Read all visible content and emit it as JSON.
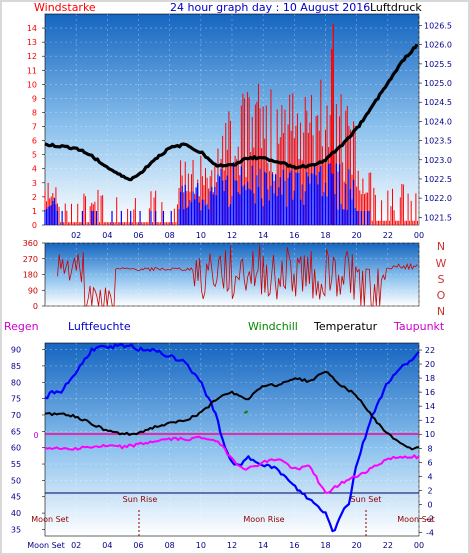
{
  "top": {
    "title_left": "Windstarke",
    "title_center": "24 hour graph day : 10 August 2016",
    "title_right": "Luftdruck"
  },
  "middle": {
    "compass": [
      "N",
      "W",
      "S",
      "O",
      "N"
    ]
  },
  "bottom": {
    "headers": [
      {
        "text": "Regen",
        "color": "#cc00cc"
      },
      {
        "text": "Luftfeuchte",
        "color": "#0000cc"
      },
      {
        "text": "Windchill",
        "color": "#008800"
      },
      {
        "text": "Temperatur",
        "color": "#000000"
      },
      {
        "text": "Taupunkt",
        "color": "#cc00cc"
      }
    ],
    "events": {
      "moon_set_left": "Moon Set",
      "sun_rise": "Sun Rise",
      "moon_rise": "Moon Rise",
      "sun_set": "Sun Set",
      "moon_set_right": "Moon Set",
      "moon_set_axis": "Moon Set"
    },
    "zero_label": "0"
  },
  "colors": {
    "wind_speed": "#ff0000",
    "gust": "#0000ff",
    "pressure": "#000000",
    "wind_dir": "#cc0000",
    "humidity": "#0000ff",
    "temperature": "#000000",
    "dewpoint": "#ff00ff",
    "windchill": "#008800",
    "events": "#8b0000",
    "plot_top": "#1565c0",
    "plot_bottom": "#ffffff"
  },
  "chart_data": [
    {
      "type": "line",
      "x_ticks": [
        "02",
        "04",
        "06",
        "08",
        "10",
        "12",
        "14",
        "16",
        "18",
        "20",
        "22",
        "00"
      ],
      "wind_axis": {
        "label": "Windstarke",
        "ticks": [
          0,
          1,
          2,
          3,
          4,
          5,
          6,
          7,
          8,
          9,
          10,
          11,
          12,
          13,
          14
        ],
        "ylim": [
          0,
          15
        ]
      },
      "pressure_axis": {
        "label": "Luftdruck",
        "ticks": [
          1021.5,
          1022,
          1022.5,
          1023,
          1023.5,
          1024,
          1024.5,
          1025,
          1025.5,
          1026,
          1026.5
        ],
        "ylim": [
          1021.3,
          1026.8
        ]
      },
      "pressure_series": {
        "name": "Luftdruck",
        "x": [
          0,
          1,
          2,
          3,
          4,
          5,
          5.5,
          6,
          7,
          8,
          9,
          10,
          11,
          12,
          13,
          14,
          15,
          16,
          17,
          18,
          19,
          20,
          21,
          22,
          23,
          24
        ],
        "values": [
          1023.4,
          1023.35,
          1023.3,
          1023.1,
          1022.8,
          1022.55,
          1022.5,
          1022.6,
          1023.0,
          1023.3,
          1023.4,
          1023.2,
          1022.85,
          1022.85,
          1023.05,
          1023.05,
          1022.95,
          1022.8,
          1022.85,
          1023.0,
          1023.35,
          1023.8,
          1024.4,
          1025.0,
          1025.6,
          1026.05
        ]
      },
      "wind_note": "wind speed (red) and gusts (blue) are dense bars; peak gust about 14 at 18:30"
    },
    {
      "type": "line",
      "x_ticks": [
        "02",
        "04",
        "06",
        "08",
        "10",
        "12",
        "14",
        "16",
        "18",
        "20",
        "22",
        "00"
      ],
      "direction_axis": {
        "ticks": [
          0,
          90,
          180,
          270,
          360
        ],
        "ylim": [
          0,
          360
        ]
      },
      "compass": [
        "N",
        "W",
        "S",
        "O",
        "N"
      ]
    },
    {
      "type": "line",
      "x_ticks": [
        "Moon Set",
        "02",
        "04",
        "06",
        "08",
        "10",
        "12",
        "14",
        "16",
        "18",
        "20",
        "22",
        "00"
      ],
      "humidity_axis": {
        "label": "Luftfeuchte",
        "ticks": [
          35,
          40,
          45,
          50,
          55,
          60,
          65,
          70,
          75,
          80,
          85,
          90
        ],
        "ylim": [
          33,
          92
        ]
      },
      "temperature_axis": {
        "label": "Temperatur",
        "ticks": [
          -4,
          -2,
          0,
          2,
          4,
          6,
          8,
          10,
          12,
          14,
          16,
          18,
          20,
          22
        ],
        "ylim": [
          -4.5,
          23
        ]
      },
      "series": [
        {
          "name": "Luftfeuchte",
          "axis": "humidity",
          "x": [
            0,
            0.5,
            1,
            2,
            3,
            4,
            5,
            5.5,
            6,
            7,
            8,
            9,
            10,
            11,
            11.5,
            12,
            12.5,
            13,
            14,
            15,
            16,
            17,
            17.5,
            18,
            18.5,
            19,
            19.5,
            20,
            21,
            22,
            23,
            24
          ],
          "values": [
            75,
            77,
            77,
            83,
            90,
            91,
            91,
            91,
            90,
            90,
            88,
            86,
            80,
            70,
            60,
            56,
            54,
            57,
            55,
            53,
            48,
            44,
            42,
            40,
            34,
            40,
            43,
            55,
            70,
            80,
            85,
            89
          ]
        },
        {
          "name": "Temperatur",
          "axis": "temperature",
          "x": [
            0,
            1,
            2,
            3,
            4,
            5,
            6,
            7,
            8,
            9,
            10,
            11,
            12,
            13,
            14,
            15,
            16,
            17,
            18,
            19,
            20,
            21,
            22,
            23,
            23.5,
            24
          ],
          "values": [
            12.8,
            13,
            12.5,
            11.5,
            10.5,
            10,
            10.2,
            11,
            11.5,
            12,
            13,
            15,
            16,
            15,
            17,
            17,
            18,
            17.5,
            19,
            17,
            15.5,
            12.5,
            10,
            8.5,
            8,
            8
          ]
        },
        {
          "name": "Taupunkt",
          "axis": "temperature",
          "x": [
            0,
            1,
            2,
            3,
            4,
            5,
            6,
            7,
            8,
            9,
            10,
            11,
            12,
            12.5,
            13,
            14,
            15,
            16,
            17,
            18,
            19,
            20,
            21,
            22,
            23,
            24
          ],
          "values": [
            8.2,
            8,
            8,
            8.2,
            8.3,
            8.2,
            8.5,
            9,
            9.3,
            9.3,
            9.5,
            9.2,
            6.5,
            5.5,
            5,
            6,
            6.5,
            5,
            5.5,
            1.5,
            3,
            4,
            5.2,
            6.5,
            6.8,
            6.8
          ]
        },
        {
          "name": "Windchill",
          "axis": "temperature",
          "x": [
            12.8,
            13
          ],
          "values": [
            13,
            13
          ]
        }
      ],
      "rain_zero_line": 0,
      "events": [
        "Moon Set",
        "Sun Rise",
        "Moon Rise",
        "Sun Set",
        "Moon Set"
      ]
    }
  ]
}
